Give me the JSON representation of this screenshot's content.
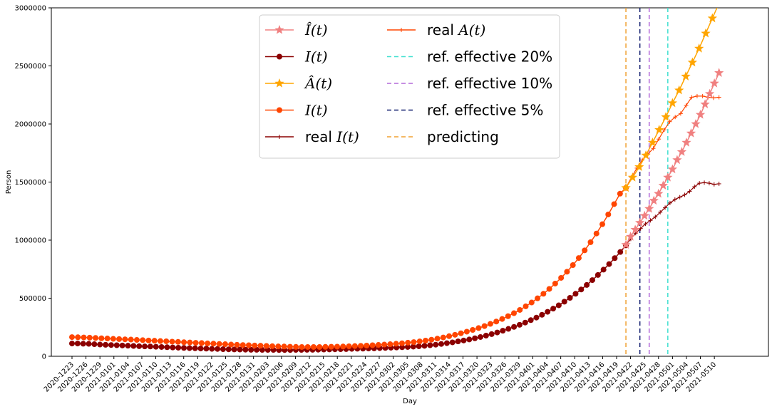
{
  "chart_data": {
    "type": "line",
    "xlabel": "Day",
    "ylabel": "Person",
    "ylim": [
      0,
      3000000
    ],
    "yticks": [
      0,
      500000,
      1000000,
      1500000,
      2000000,
      2500000,
      3000000
    ],
    "tick_labels": [
      "2020-1223",
      "2020-1226",
      "2020-1229",
      "2021-0101",
      "2021-0104",
      "2021-0107",
      "2021-0110",
      "2021-0113",
      "2021-0116",
      "2021-0119",
      "2021-0122",
      "2021-0125",
      "2021-0128",
      "2021-0131",
      "2021-0203",
      "2021-0206",
      "2021-0209",
      "2021-0212",
      "2021-0215",
      "2021-0218",
      "2021-0221",
      "2021-0224",
      "2021-0227",
      "2021-0302",
      "2021-0305",
      "2021-0308",
      "2021-0311",
      "2021-0314",
      "2021-0317",
      "2021-0320",
      "2021-0323",
      "2021-0326",
      "2021-0329",
      "2021-0401",
      "2021-0404",
      "2021-0407",
      "2021-0410",
      "2021-0413",
      "2021-0416",
      "2021-0419",
      "2021-0422",
      "2021-0425",
      "2021-0428",
      "2021-0501",
      "2021-0504",
      "2021-0507",
      "2021-0510"
    ],
    "x_dates": {
      "fitted_start": "2020-12-23",
      "fitted_end": "2021-04-21",
      "real_start": "2021-04-21",
      "real_end": "2021-05-11",
      "pred_start": "2021-04-21",
      "pred_end": "2021-05-11"
    },
    "reference_lines": [
      {
        "name": "ref. effective 20%",
        "date": "2021-04-30",
        "color": "#40e0d0"
      },
      {
        "name": "ref. effective 10%",
        "date": "2021-04-26",
        "color": "#b368d9"
      },
      {
        "name": "ref. effective 5%",
        "date": "2021-04-24",
        "color": "#101c6e"
      },
      {
        "name": "predicting",
        "date": "2021-04-21",
        "color": "#f0a030"
      }
    ],
    "series": [
      {
        "name": "I(t)",
        "kind": "fitted",
        "color": "#8b0000",
        "marker": "circle",
        "values": [
          110000,
          110000,
          108000,
          107000,
          104000,
          101000,
          99000,
          97000,
          95000,
          93000,
          91000,
          89000,
          87000,
          85000,
          84000,
          82000,
          80000,
          78000,
          76000,
          74000,
          72000,
          70000,
          69000,
          67000,
          66000,
          64000,
          63000,
          61000,
          60000,
          59000,
          58000,
          57000,
          56000,
          56000,
          55000,
          55000,
          55000,
          54000,
          54000,
          54000,
          55000,
          55000,
          56000,
          56000,
          57000,
          58000,
          59000,
          60000,
          61000,
          62000,
          64000,
          65000,
          66000,
          67000,
          68000,
          70000,
          72000,
          74000,
          76000,
          78000,
          80000,
          83000,
          86000,
          90000,
          95000,
          100000,
          106000,
          113000,
          120000,
          128000,
          136000,
          145000,
          155000,
          166000,
          178000,
          191000,
          205000,
          220000,
          236000,
          253000,
          271000,
          290000,
          311000,
          333000,
          357000,
          383000,
          410000,
          439000,
          470000,
          503000,
          538000,
          575000,
          614000,
          656000,
          700000,
          746000,
          794000,
          845000,
          898000,
          955000
        ]
      },
      {
        "name": "I(t)",
        "kind": "fitted",
        "color": "#ff4500",
        "marker": "circle",
        "values": [
          165000,
          164000,
          162000,
          160000,
          158000,
          155000,
          153000,
          150000,
          148000,
          146000,
          144000,
          141000,
          139000,
          136000,
          134000,
          131000,
          129000,
          126000,
          124000,
          121000,
          119000,
          116000,
          114000,
          111000,
          109000,
          106000,
          104000,
          101000,
          99000,
          97000,
          95000,
          93000,
          91000,
          89000,
          87000,
          85000,
          84000,
          82000,
          81000,
          80000,
          80000,
          80000,
          80000,
          81000,
          82000,
          83000,
          84000,
          86000,
          88000,
          90000,
          92000,
          95000,
          98000,
          101000,
          104000,
          108000,
          112000,
          117000,
          122000,
          128000,
          135000,
          143000,
          152000,
          162000,
          173000,
          185000,
          198000,
          212000,
          227000,
          243000,
          260000,
          279000,
          299000,
          321000,
          345000,
          371000,
          399000,
          430000,
          463000,
          499000,
          538000,
          580000,
          626000,
          675000,
          728000,
          785000,
          846000,
          912000,
          982000,
          1057000,
          1137000,
          1221000,
          1310000,
          1400000,
          1450000
        ]
      },
      {
        "name": "real I(t)",
        "kind": "real",
        "color": "#8b0000",
        "marker": "plus",
        "values": [
          960000,
          1010000,
          1060000,
          1100000,
          1140000,
          1170000,
          1200000,
          1240000,
          1280000,
          1320000,
          1350000,
          1370000,
          1390000,
          1420000,
          1460000,
          1490000,
          1495000,
          1490000,
          1480000,
          1485000
        ]
      },
      {
        "name": "real A(t)",
        "kind": "real",
        "color": "#ff4500",
        "marker": "plus",
        "values": [
          1450000,
          1540000,
          1620000,
          1690000,
          1740000,
          1790000,
          1870000,
          1950000,
          2020000,
          2060000,
          2090000,
          2160000,
          2230000,
          2240000,
          2240000,
          2230000,
          2225000,
          2230000
        ]
      },
      {
        "name": "Î(t)",
        "kind": "predicted",
        "color": "#f08080",
        "marker": "star",
        "values": [
          960000,
          1030000,
          1090000,
          1150000,
          1210000,
          1270000,
          1340000,
          1400000,
          1470000,
          1540000,
          1610000,
          1690000,
          1760000,
          1840000,
          1920000,
          2000000,
          2080000,
          2170000,
          2260000,
          2350000,
          2440000
        ]
      },
      {
        "name": "Â(t)",
        "kind": "predicted",
        "color": "#ffa500",
        "marker": "star",
        "values": [
          1450000,
          1540000,
          1630000,
          1730000,
          1840000,
          1950000,
          2060000,
          2180000,
          2290000,
          2410000,
          2530000,
          2650000,
          2780000,
          2910000,
          3040000
        ]
      }
    ],
    "legend": {
      "placement": "upper-center",
      "entries": [
        {
          "label": "Î(t)",
          "color": "#f08080",
          "marker": "star",
          "style": "solid"
        },
        {
          "label": "I(t)",
          "color": "#8b0000",
          "marker": "circle",
          "style": "solid"
        },
        {
          "label": "Â(t)",
          "color": "#ffa500",
          "marker": "star",
          "style": "solid"
        },
        {
          "label": "I(t)",
          "color": "#ff4500",
          "marker": "circle",
          "style": "solid"
        },
        {
          "label": "real I(t)",
          "color": "#8b0000",
          "marker": "plus",
          "style": "solid"
        },
        {
          "label": "real A(t)",
          "color": "#ff4500",
          "marker": "plus",
          "style": "solid"
        },
        {
          "label": "ref. effective 20%",
          "color": "#40e0d0",
          "marker": "none",
          "style": "dashed"
        },
        {
          "label": "ref. effective 10%",
          "color": "#b368d9",
          "marker": "none",
          "style": "dashed"
        },
        {
          "label": "ref. effective 5%",
          "color": "#101c6e",
          "marker": "none",
          "style": "dashed"
        },
        {
          "label": "predicting",
          "color": "#f0a030",
          "marker": "none",
          "style": "dashed"
        }
      ]
    }
  }
}
